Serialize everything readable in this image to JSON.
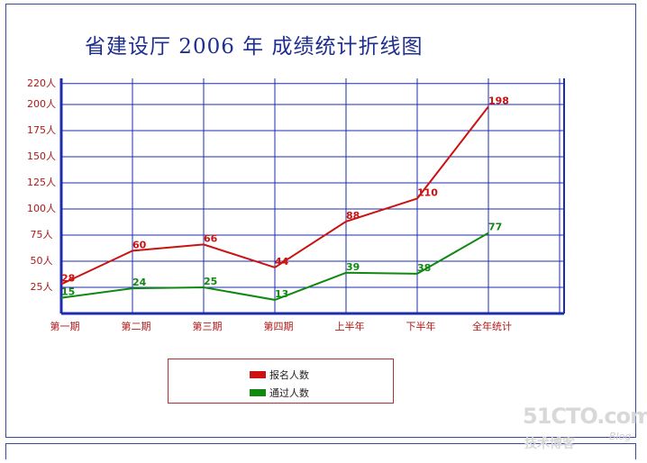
{
  "chart_data": {
    "type": "line",
    "title": "省建设厅 2006 年 成绩统计折线图",
    "categories": [
      "第一期",
      "第二期",
      "第三期",
      "第四期",
      "上半年",
      "下半年",
      "全年统计"
    ],
    "y_ticks": [
      "25人",
      "50人",
      "75人",
      "100人",
      "125人",
      "150人",
      "175人",
      "200人",
      "220人"
    ],
    "ylim": [
      0,
      225
    ],
    "grid": true,
    "legend_position": "bottom",
    "series": [
      {
        "name": "报名人数",
        "color": "#cc1111",
        "values": [
          28,
          60,
          66,
          44,
          88,
          110,
          198
        ]
      },
      {
        "name": "通过人数",
        "color": "#118811",
        "values": [
          15,
          24,
          25,
          13,
          39,
          38,
          77
        ]
      }
    ],
    "colors": {
      "grid": "#1c2cb0",
      "axis": "#1c2cb0",
      "tick_text": "#b01818"
    }
  },
  "watermark": {
    "main": "51CTO.com",
    "sub": "技术博客",
    "blog": "Blog"
  }
}
